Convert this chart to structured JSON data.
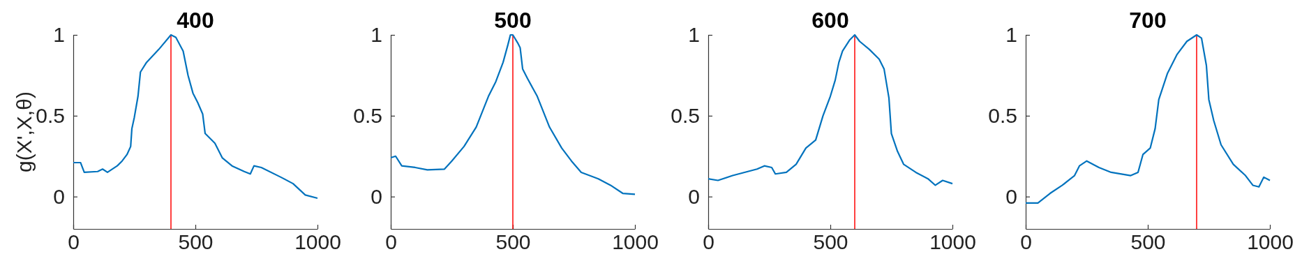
{
  "chart_data": [
    {
      "type": "line",
      "title": "400",
      "ylabel": "g(X',X,θ)",
      "xlim": [
        0,
        1000
      ],
      "xticks": [
        0,
        500,
        1000
      ],
      "ylim": [
        -0.2,
        1
      ],
      "yticks": [
        0,
        0.5,
        1
      ],
      "series": [
        {
          "color": "#0072bd",
          "x": [
            0,
            30,
            45,
            100,
            120,
            140,
            180,
            200,
            220,
            235,
            240,
            250,
            265,
            275,
            300,
            350,
            400,
            420,
            450,
            470,
            490,
            510,
            530,
            540,
            560,
            580,
            610,
            650,
            700,
            725,
            740,
            770,
            850,
            900,
            950,
            1000
          ],
          "values": [
            0.21,
            0.21,
            0.15,
            0.155,
            0.17,
            0.15,
            0.19,
            0.22,
            0.26,
            0.31,
            0.42,
            0.49,
            0.62,
            0.77,
            0.83,
            0.91,
            1.0,
            0.985,
            0.9,
            0.75,
            0.64,
            0.58,
            0.51,
            0.39,
            0.36,
            0.33,
            0.24,
            0.19,
            0.155,
            0.14,
            0.19,
            0.18,
            0.12,
            0.08,
            0.01,
            -0.01
          ]
        }
      ],
      "ref_lines": [
        {
          "axis": "x",
          "value": 400,
          "color": "#ff0000"
        }
      ]
    },
    {
      "type": "line",
      "title": "500",
      "xlim": [
        0,
        1000
      ],
      "xticks": [
        0,
        500,
        1000
      ],
      "ylim": [
        -0.2,
        1
      ],
      "yticks": [
        0,
        0.5,
        1
      ],
      "series": [
        {
          "color": "#0072bd",
          "x": [
            0,
            20,
            45,
            100,
            150,
            220,
            250,
            300,
            350,
            400,
            430,
            460,
            480,
            490,
            500,
            520,
            530,
            540,
            560,
            600,
            650,
            700,
            740,
            780,
            850,
            900,
            950,
            1000
          ],
          "values": [
            0.24,
            0.25,
            0.19,
            0.18,
            0.165,
            0.17,
            0.22,
            0.31,
            0.43,
            0.62,
            0.71,
            0.83,
            0.94,
            1.0,
            1.0,
            0.95,
            0.92,
            0.79,
            0.73,
            0.62,
            0.43,
            0.3,
            0.22,
            0.15,
            0.11,
            0.07,
            0.02,
            0.014
          ]
        }
      ],
      "ref_lines": [
        {
          "axis": "x",
          "value": 500,
          "color": "#ff0000"
        }
      ]
    },
    {
      "type": "line",
      "title": "600",
      "xlim": [
        0,
        1000
      ],
      "xticks": [
        0,
        500,
        1000
      ],
      "ylim": [
        -0.2,
        1
      ],
      "yticks": [
        0,
        0.5,
        1
      ],
      "series": [
        {
          "color": "#0072bd",
          "x": [
            0,
            40,
            100,
            200,
            230,
            260,
            275,
            320,
            360,
            400,
            440,
            470,
            500,
            520,
            535,
            550,
            580,
            600,
            620,
            660,
            700,
            720,
            740,
            750,
            775,
            800,
            850,
            900,
            930,
            960,
            1000
          ],
          "values": [
            0.11,
            0.1,
            0.13,
            0.17,
            0.19,
            0.18,
            0.14,
            0.15,
            0.2,
            0.3,
            0.35,
            0.5,
            0.62,
            0.72,
            0.83,
            0.9,
            0.97,
            1.0,
            0.96,
            0.91,
            0.85,
            0.79,
            0.61,
            0.39,
            0.28,
            0.2,
            0.15,
            0.11,
            0.07,
            0.1,
            0.08
          ]
        }
      ],
      "ref_lines": [
        {
          "axis": "x",
          "value": 600,
          "color": "#ff0000"
        }
      ]
    },
    {
      "type": "line",
      "title": "700",
      "xlim": [
        0,
        1000
      ],
      "xticks": [
        0,
        500,
        1000
      ],
      "ylim": [
        -0.2,
        1
      ],
      "yticks": [
        0,
        0.5,
        1
      ],
      "series": [
        {
          "color": "#0072bd",
          "x": [
            0,
            50,
            100,
            150,
            200,
            220,
            250,
            300,
            350,
            430,
            460,
            480,
            510,
            530,
            545,
            580,
            620,
            660,
            700,
            720,
            740,
            750,
            770,
            800,
            850,
            900,
            930,
            955,
            975,
            1000
          ],
          "values": [
            -0.04,
            -0.04,
            0.02,
            0.07,
            0.13,
            0.19,
            0.22,
            0.18,
            0.15,
            0.13,
            0.15,
            0.26,
            0.3,
            0.42,
            0.6,
            0.76,
            0.88,
            0.96,
            1.0,
            0.98,
            0.81,
            0.6,
            0.47,
            0.32,
            0.2,
            0.13,
            0.07,
            0.06,
            0.12,
            0.1
          ]
        }
      ],
      "ref_lines": [
        {
          "axis": "x",
          "value": 700,
          "color": "#ff0000"
        }
      ]
    }
  ]
}
